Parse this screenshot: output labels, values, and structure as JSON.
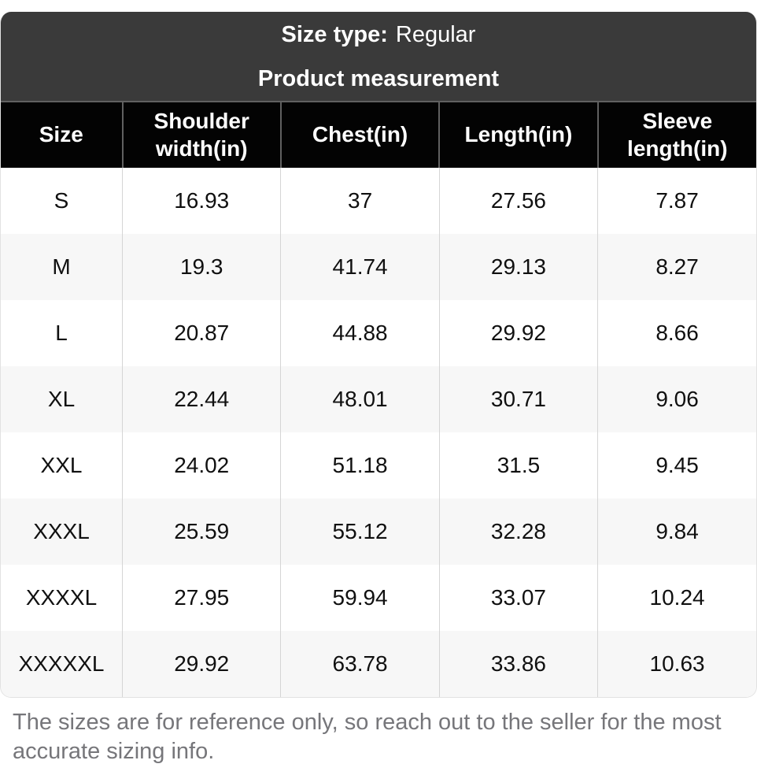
{
  "header": {
    "size_type_label": "Size type:",
    "size_type_value": "Regular",
    "subtitle": "Product measurement"
  },
  "table": {
    "columns": [
      "Size",
      "Shoulder width(in)",
      "Chest(in)",
      "Length(in)",
      "Sleeve length(in)"
    ],
    "rows": [
      [
        "S",
        "16.93",
        "37",
        "27.56",
        "7.87"
      ],
      [
        "M",
        "19.3",
        "41.74",
        "29.13",
        "8.27"
      ],
      [
        "L",
        "20.87",
        "44.88",
        "29.92",
        "8.66"
      ],
      [
        "XL",
        "22.44",
        "48.01",
        "30.71",
        "9.06"
      ],
      [
        "XXL",
        "24.02",
        "51.18",
        "31.5",
        "9.45"
      ],
      [
        "XXXL",
        "25.59",
        "55.12",
        "32.28",
        "9.84"
      ],
      [
        "XXXXL",
        "27.95",
        "59.94",
        "33.07",
        "10.24"
      ],
      [
        "XXXXXL",
        "29.92",
        "63.78",
        "33.86",
        "10.63"
      ]
    ]
  },
  "footer": {
    "note": "The sizes are for reference only, so reach out to the seller for the most accurate sizing info."
  },
  "colors": {
    "title_bar_bg": "#3a3a3a",
    "header_row_bg": "#030303",
    "header_separator": "#606060",
    "zebra_row_bg": "#f7f7f7",
    "body_separator": "#d5d5d5",
    "outer_border": "#e2e2e2",
    "cell_text": "#101010",
    "footer_text": "#76767a"
  }
}
